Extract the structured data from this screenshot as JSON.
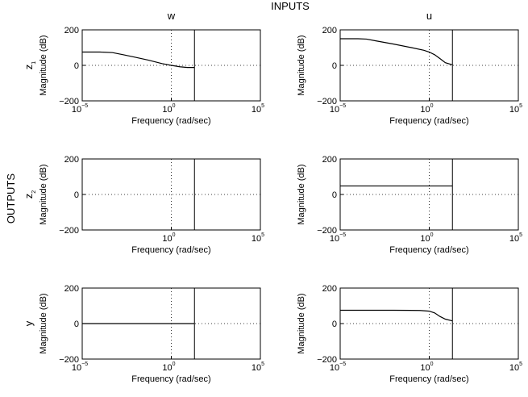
{
  "figure": {
    "top_label": "INPUTS",
    "side_label": "OUTPUTS"
  },
  "chart_data": [
    {
      "type": "line",
      "row_label": "z1",
      "row_label_base": "z",
      "row_label_sub": "1",
      "col_label": "w",
      "xlabel": "Frequency (rad/sec)",
      "ylabel": "Magnitude (dB)",
      "xscale": "log",
      "xlim": [
        1e-05,
        100000.0
      ],
      "ylim": [
        -200,
        200
      ],
      "xticks": [
        {
          "base": "10",
          "exp": "−5"
        },
        {
          "base": "10",
          "exp": "0"
        },
        {
          "base": "10",
          "exp": "5"
        }
      ],
      "yticks": [
        "200",
        "0",
        "−200"
      ],
      "grid": true,
      "cutoff_x": 20,
      "series": [
        {
          "x": [
            1e-05,
            0.0001,
            0.0005,
            0.002,
            0.01,
            0.05,
            0.3,
            1,
            3,
            8,
            20
          ],
          "y": [
            75,
            75,
            72,
            60,
            45,
            30,
            10,
            0,
            -8,
            -12,
            -12
          ]
        }
      ]
    },
    {
      "type": "line",
      "row_label": "z1",
      "row_label_base": "z",
      "row_label_sub": "1",
      "col_label": "u",
      "xlabel": "Frequency (rad/sec)",
      "ylabel": "Magnitude (dB)",
      "xscale": "log",
      "xlim": [
        1e-05,
        100000.0
      ],
      "ylim": [
        -200,
        200
      ],
      "xticks": [
        {
          "base": "10",
          "exp": "−5"
        },
        {
          "base": "10",
          "exp": "0"
        },
        {
          "base": "10",
          "exp": "5"
        }
      ],
      "yticks": [
        "200",
        "0",
        "−200"
      ],
      "grid": true,
      "cutoff_x": 20,
      "series": [
        {
          "x": [
            1e-05,
            0.0001,
            0.0003,
            0.001,
            0.01,
            0.1,
            0.5,
            1,
            2,
            4,
            8,
            20
          ],
          "y": [
            150,
            150,
            148,
            138,
            120,
            100,
            85,
            75,
            60,
            38,
            15,
            3
          ]
        }
      ]
    },
    {
      "type": "line",
      "row_label": "z2",
      "row_label_base": "z",
      "row_label_sub": "2",
      "col_label": "w",
      "xlabel": "Frequency (rad/sec)",
      "ylabel": "Magnitude (dB)",
      "xscale": "log",
      "xlim": [
        1e-05,
        100000.0
      ],
      "ylim": [
        -200,
        200
      ],
      "xticks": [
        {
          "base": "",
          "exp": ""
        },
        {
          "base": "10",
          "exp": "0"
        },
        {
          "base": "10",
          "exp": "5"
        }
      ],
      "yticks": [
        "200",
        "0",
        "−200"
      ],
      "grid": true,
      "cutoff_x": 20,
      "series": []
    },
    {
      "type": "line",
      "row_label": "z2",
      "row_label_base": "z",
      "row_label_sub": "2",
      "col_label": "u",
      "xlabel": "Frequency (rad/sec)",
      "ylabel": "Magnitude (dB)",
      "xscale": "log",
      "xlim": [
        1e-05,
        100000.0
      ],
      "ylim": [
        -200,
        200
      ],
      "xticks": [
        {
          "base": "10",
          "exp": "−5"
        },
        {
          "base": "10",
          "exp": "0"
        },
        {
          "base": "10",
          "exp": "5"
        }
      ],
      "yticks": [
        "200",
        "0",
        "−200"
      ],
      "grid": true,
      "cutoff_x": 20,
      "series": [
        {
          "x": [
            1e-05,
            20
          ],
          "y": [
            48,
            48
          ]
        }
      ]
    },
    {
      "type": "line",
      "row_label": "y",
      "row_label_base": "y",
      "row_label_sub": "",
      "col_label": "w",
      "xlabel": "Frequency (rad/sec)",
      "ylabel": "Magnitude (dB)",
      "xscale": "log",
      "xlim": [
        1e-05,
        100000.0
      ],
      "ylim": [
        -200,
        200
      ],
      "xticks": [
        {
          "base": "10",
          "exp": "−5"
        },
        {
          "base": "10",
          "exp": "0"
        },
        {
          "base": "10",
          "exp": "5"
        }
      ],
      "yticks": [
        "200",
        "0",
        "−200"
      ],
      "grid": true,
      "cutoff_x": 20,
      "series": [
        {
          "x": [
            1e-05,
            20
          ],
          "y": [
            0,
            0
          ]
        }
      ]
    },
    {
      "type": "line",
      "row_label": "y",
      "row_label_base": "y",
      "row_label_sub": "",
      "col_label": "u",
      "xlabel": "Frequency (rad/sec)",
      "ylabel": "Magnitude (dB)",
      "xscale": "log",
      "xlim": [
        1e-05,
        100000.0
      ],
      "ylim": [
        -200,
        200
      ],
      "xticks": [
        {
          "base": "10",
          "exp": "−5"
        },
        {
          "base": "10",
          "exp": "0"
        },
        {
          "base": "10",
          "exp": "5"
        }
      ],
      "yticks": [
        "200",
        "0",
        "−200"
      ],
      "grid": true,
      "cutoff_x": 20,
      "series": [
        {
          "x": [
            1e-05,
            0.01,
            0.3,
            1,
            2,
            4,
            8,
            20
          ],
          "y": [
            75,
            75,
            74,
            70,
            60,
            40,
            25,
            15
          ]
        }
      ]
    }
  ]
}
